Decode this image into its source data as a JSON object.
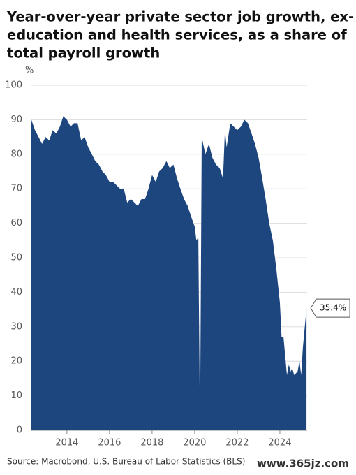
{
  "chart_data": {
    "type": "area",
    "title": [
      "Year-over-year private sector job growth, ex-",
      "education and health services, as a share of",
      "total payroll growth"
    ],
    "y_label": "%",
    "source": "Source: Macrobond, U.S. Bureau of Labor Statistics (BLS)",
    "watermark": "www.365jz.com",
    "color": "#1d467f",
    "grid": true,
    "x": [
      2012.33,
      2012.5,
      2012.67,
      2012.83,
      2013.0,
      2013.17,
      2013.33,
      2013.5,
      2013.67,
      2013.83,
      2014.0,
      2014.17,
      2014.33,
      2014.5,
      2014.67,
      2014.83,
      2015.0,
      2015.17,
      2015.33,
      2015.5,
      2015.67,
      2015.83,
      2016.0,
      2016.17,
      2016.33,
      2016.5,
      2016.67,
      2016.83,
      2017.0,
      2017.17,
      2017.33,
      2017.5,
      2017.67,
      2017.83,
      2018.0,
      2018.17,
      2018.33,
      2018.5,
      2018.67,
      2018.83,
      2019.0,
      2019.17,
      2019.33,
      2019.5,
      2019.67,
      2019.83,
      2020.0,
      2020.08,
      2020.17,
      2020.25,
      2020.33,
      2020.5,
      2020.67,
      2020.83,
      2021.0,
      2021.17,
      2021.33,
      2021.42,
      2021.5,
      2021.67,
      2021.83,
      2022.0,
      2022.17,
      2022.33,
      2022.5,
      2022.67,
      2022.83,
      2023.0,
      2023.17,
      2023.33,
      2023.5,
      2023.67,
      2023.83,
      2024.0,
      2024.08,
      2024.17,
      2024.33,
      2024.42,
      2024.5,
      2024.58,
      2024.67,
      2024.83,
      2024.92,
      2025.0,
      2025.08,
      2025.17,
      2025.25
    ],
    "values": [
      90,
      87,
      85,
      83,
      85,
      84,
      87,
      86,
      88,
      91,
      90,
      88,
      89,
      89,
      84,
      85,
      82,
      80,
      78,
      77,
      75,
      74,
      72,
      72,
      71,
      70,
      70,
      66,
      67,
      66,
      65,
      67,
      67,
      70,
      74,
      72,
      75,
      76,
      78,
      76,
      77,
      73,
      70,
      67,
      65,
      62,
      59,
      55,
      56,
      0,
      85,
      80,
      83,
      79,
      77,
      76,
      73,
      87,
      82,
      89,
      88,
      87,
      88,
      90,
      89,
      86,
      83,
      79,
      73,
      67,
      60,
      55,
      47,
      37,
      27,
      27,
      16,
      19,
      17,
      18,
      16,
      17,
      20,
      16,
      24,
      30,
      35.4
    ],
    "last_label": "35.4%",
    "xlim": [
      2012.3,
      2025.28
    ],
    "xticks": [
      2014,
      2016,
      2018,
      2020,
      2022,
      2024
    ],
    "ylim": [
      0,
      100
    ],
    "yticks": [
      0,
      10,
      20,
      30,
      40,
      50,
      60,
      70,
      80,
      90,
      100
    ]
  }
}
